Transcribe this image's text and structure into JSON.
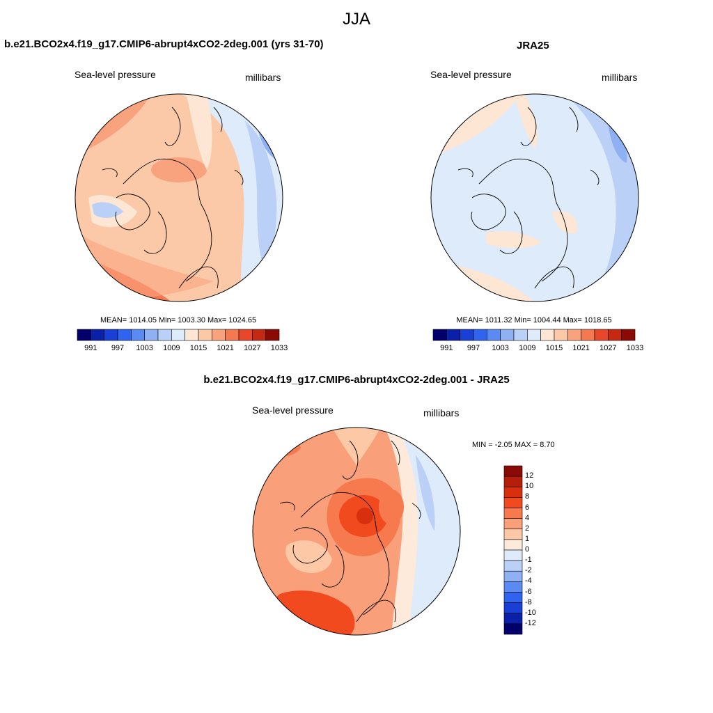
{
  "figure": {
    "season": "JJA"
  },
  "panels": {
    "model": {
      "title": "b.e21.BCO2x4.f19_g17.CMIP6-abrupt4xCO2-2deg.001 (yrs 31-70)",
      "left_label": "Sea-level pressure",
      "right_label": "millibars",
      "stats": "MEAN= 1014.05  Min= 1003.30  Max= 1024.65"
    },
    "obs": {
      "title": "JRA25",
      "left_label": "Sea-level pressure",
      "right_label": "millibars",
      "stats": "MEAN= 1011.32  Min= 1004.44  Max= 1018.65"
    },
    "diff": {
      "title": "b.e21.BCO2x4.f19_g17.CMIP6-abrupt4xCO2-2deg.001 - JRA25",
      "left_label": "Sea-level pressure",
      "right_label": "millibars",
      "stats": "MIN =  -2.05 MAX =   8.70"
    }
  },
  "colorbars": {
    "abs": {
      "colors": [
        "#03006b",
        "#0a20a8",
        "#1a3fd6",
        "#2f63f0",
        "#5a8af2",
        "#8fb0f2",
        "#bad0f7",
        "#deebfb",
        "#fde6d4",
        "#fcc9a8",
        "#f9a37e",
        "#f47850",
        "#e8482a",
        "#c42a12",
        "#8a0a05"
      ],
      "tick_labels": [
        "991",
        "997",
        "1003",
        "1009",
        "1015",
        "1021",
        "1027",
        "1033"
      ]
    },
    "diff": {
      "colors": [
        "#8a0a05",
        "#b51e0b",
        "#d8300f",
        "#f24a1f",
        "#f77a4f",
        "#f9a07b",
        "#fcc8a6",
        "#feeadb",
        "#deebfb",
        "#bad0f7",
        "#8fb0f2",
        "#5a8af2",
        "#2f63f0",
        "#1a3fd6",
        "#0a20a8",
        "#03006b"
      ],
      "tick_labels": [
        "12",
        "10",
        "8",
        "6",
        "4",
        "2",
        "1",
        "0",
        "-1",
        "-2",
        "-4",
        "-6",
        "-8",
        "-10",
        "-12"
      ]
    }
  }
}
